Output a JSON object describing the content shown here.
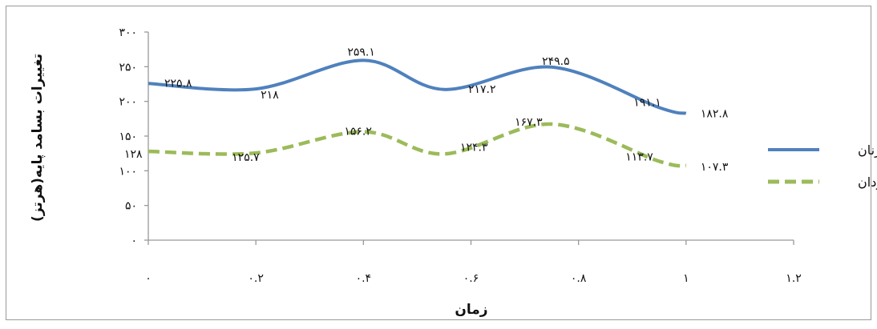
{
  "chart_data": {
    "type": "line",
    "title": "",
    "xlabel": "زمان",
    "ylabel": "تغییرات بسامد پایه(هرتز)",
    "x": [
      0,
      0.25,
      0.5,
      0.75,
      1
    ],
    "xlim": [
      0,
      1.2
    ],
    "ylim": [
      0,
      300
    ],
    "x_ticks": [
      {
        "v": 0,
        "label": "۰"
      },
      {
        "v": 0.2,
        "label": "۰.۲"
      },
      {
        "v": 0.4,
        "label": "۰.۴"
      },
      {
        "v": 0.6,
        "label": "۰.۶"
      },
      {
        "v": 0.8,
        "label": "۰.۸"
      },
      {
        "v": 1.0,
        "label": "۱"
      },
      {
        "v": 1.2,
        "label": "۱.۲"
      }
    ],
    "y_ticks": [
      {
        "v": 0,
        "label": "۰"
      },
      {
        "v": 50,
        "label": "۵۰"
      },
      {
        "v": 100,
        "label": "۱۰۰"
      },
      {
        "v": 150,
        "label": "۱۵۰"
      },
      {
        "v": 200,
        "label": "۲۰۰"
      },
      {
        "v": 250,
        "label": "۲۵۰"
      },
      {
        "v": 300,
        "label": "۳۰۰"
      }
    ],
    "grid": false,
    "legend_position": "right",
    "series": [
      {
        "name": "زنان",
        "color": "#4f81bd",
        "style": "solid",
        "values": [
          225.8,
          218,
          259.1,
          217.2,
          249.5,
          191.1,
          182.8
        ],
        "x": [
          0,
          0.2,
          0.4,
          0.55,
          0.75,
          0.95,
          1.0
        ],
        "labels": [
          "۲۲۵.۸",
          "۲۱۸",
          "۲۵۹.۱",
          "۲۱۷.۲",
          "۲۴۹.۵",
          "۱۹۱.۱",
          "۱۸۲.۸"
        ]
      },
      {
        "name": "مردان",
        "color": "#9bbb59",
        "style": "dashed",
        "values": [
          128,
          125.7,
          156.2,
          124.3,
          167.3,
          113.7,
          107.3
        ],
        "x": [
          0,
          0.2,
          0.4,
          0.55,
          0.75,
          0.95,
          1.0
        ],
        "labels": [
          "۱۲۸",
          "۱۲۵.۷",
          "۱۵۶.۲",
          "۱۲۴.۳",
          "۱۶۷.۳",
          "۱۱۳.۷",
          "۱۰۷.۳"
        ]
      }
    ]
  }
}
